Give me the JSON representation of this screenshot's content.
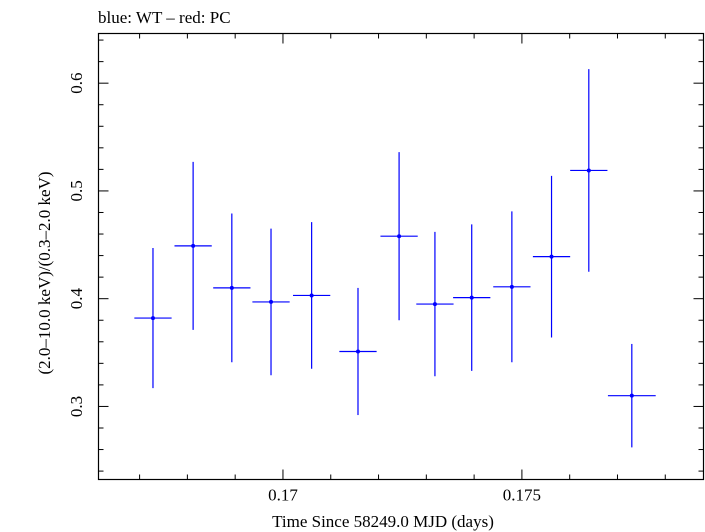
{
  "chart_data": {
    "type": "scatter",
    "title": "blue: WT – red: PC",
    "xlabel": "Time Since 58249.0 MJD (days)",
    "ylabel": "(2.0–10.0 keV)/(0.3–2.0 keV)",
    "xlim": [
      0.16614,
      0.1788
    ],
    "ylim": [
      0.2322,
      0.6461
    ],
    "x_ticks_major": [
      0.17,
      0.175
    ],
    "x_tick_labels": [
      "0.17",
      "0.175"
    ],
    "y_ticks_major": [
      0.3,
      0.4,
      0.5,
      0.6
    ],
    "y_tick_labels": [
      "0.3",
      "0.4",
      "0.5",
      "0.6"
    ],
    "grid": false,
    "legend": "none",
    "series": [
      {
        "color": "#0000ff",
        "points": [
          {
            "x": 0.16728,
            "xerr": 0.00039,
            "y": 0.382,
            "yerr_lo": 0.065,
            "yerr_hi": 0.065
          },
          {
            "x": 0.16812,
            "xerr": 0.00039,
            "y": 0.449,
            "yerr_lo": 0.078,
            "yerr_hi": 0.078
          },
          {
            "x": 0.16893,
            "xerr": 0.00039,
            "y": 0.41,
            "yerr_lo": 0.069,
            "yerr_hi": 0.069
          },
          {
            "x": 0.16975,
            "xerr": 0.00039,
            "y": 0.397,
            "yerr_lo": 0.068,
            "yerr_hi": 0.068
          },
          {
            "x": 0.1706,
            "xerr": 0.00039,
            "y": 0.403,
            "yerr_lo": 0.068,
            "yerr_hi": 0.068
          },
          {
            "x": 0.17157,
            "xerr": 0.00039,
            "y": 0.351,
            "yerr_lo": 0.059,
            "yerr_hi": 0.059
          },
          {
            "x": 0.17243,
            "xerr": 0.00039,
            "y": 0.458,
            "yerr_lo": 0.078,
            "yerr_hi": 0.078
          },
          {
            "x": 0.17318,
            "xerr": 0.00039,
            "y": 0.395,
            "yerr_lo": 0.067,
            "yerr_hi": 0.067
          },
          {
            "x": 0.17395,
            "xerr": 0.00039,
            "y": 0.401,
            "yerr_lo": 0.068,
            "yerr_hi": 0.068
          },
          {
            "x": 0.17479,
            "xerr": 0.00039,
            "y": 0.411,
            "yerr_lo": 0.07,
            "yerr_hi": 0.07
          },
          {
            "x": 0.17562,
            "xerr": 0.00039,
            "y": 0.439,
            "yerr_lo": 0.075,
            "yerr_hi": 0.075
          },
          {
            "x": 0.1764,
            "xerr": 0.00039,
            "y": 0.519,
            "yerr_lo": 0.094,
            "yerr_hi": 0.094
          },
          {
            "x": 0.1773,
            "xerr": 0.0005,
            "y": 0.31,
            "yerr_lo": 0.048,
            "yerr_hi": 0.048
          }
        ]
      }
    ]
  }
}
